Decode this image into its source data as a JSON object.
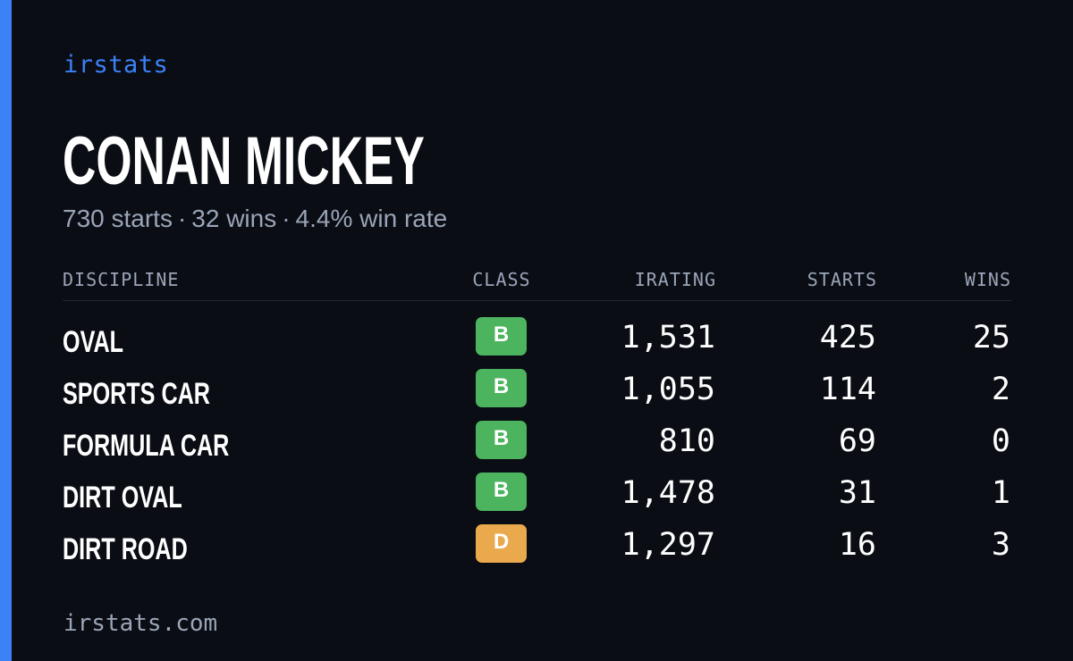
{
  "brand": "irstats",
  "driver": {
    "name": "CONAN MICKEY"
  },
  "summary": {
    "starts": "730 starts",
    "wins": "32 wins",
    "win_rate": "4.4% win rate",
    "separator": "·"
  },
  "table": {
    "headers": {
      "discipline": "DISCIPLINE",
      "class": "CLASS",
      "irating": "IRATING",
      "starts": "STARTS",
      "wins": "WINS"
    },
    "rows": [
      {
        "discipline": "OVAL",
        "class": "B",
        "class_color": "#4cb35f",
        "irating": "1,531",
        "starts": "425",
        "wins": "25"
      },
      {
        "discipline": "SPORTS CAR",
        "class": "B",
        "class_color": "#4cb35f",
        "irating": "1,055",
        "starts": "114",
        "wins": "2"
      },
      {
        "discipline": "FORMULA CAR",
        "class": "B",
        "class_color": "#4cb35f",
        "irating": "810",
        "starts": "69",
        "wins": "0"
      },
      {
        "discipline": "DIRT OVAL",
        "class": "B",
        "class_color": "#4cb35f",
        "irating": "1,478",
        "starts": "31",
        "wins": "1"
      },
      {
        "discipline": "DIRT ROAD",
        "class": "D",
        "class_color": "#eaa94c",
        "irating": "1,297",
        "starts": "16",
        "wins": "3"
      }
    ]
  },
  "footer": {
    "site": "irstats.com"
  },
  "colors": {
    "accent": "#3b82f6",
    "background": "#0a0d14",
    "muted_text": "#9aa5b8"
  }
}
